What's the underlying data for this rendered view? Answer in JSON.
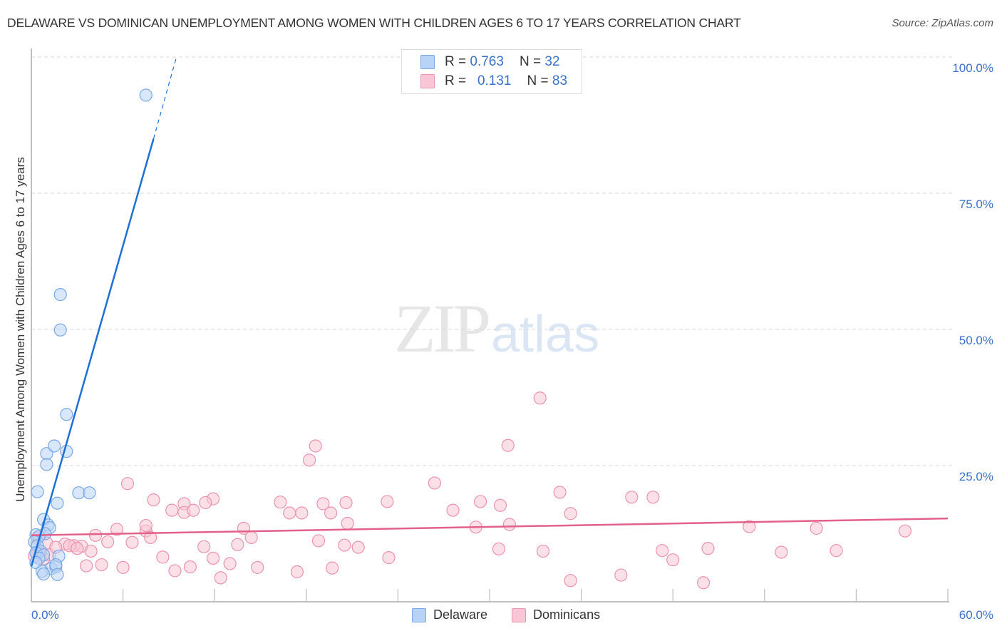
{
  "header": {
    "title": "DELAWARE VS DOMINICAN UNEMPLOYMENT AMONG WOMEN WITH CHILDREN AGES 6 TO 17 YEARS CORRELATION CHART",
    "source": "Source: ZipAtlas.com"
  },
  "watermark": {
    "zip": "ZIP",
    "atlas": "atlas"
  },
  "legend": {
    "rows": [
      {
        "r_label": "R =",
        "r_value": "0.763",
        "n_label": "N =",
        "n_value": "32",
        "color": "#a9c8f0"
      },
      {
        "r_label": "R =",
        "r_value": "0.131",
        "n_label": "N =",
        "n_value": "83",
        "color": "#f7bccf"
      }
    ]
  },
  "bottom_legend": [
    {
      "label": "Delaware",
      "color": "#b8d3f5"
    },
    {
      "label": "Dominicans",
      "color": "#f9c6d6"
    }
  ],
  "axes": {
    "y_label": "Unemployment Among Women with Children Ages 6 to 17 years",
    "y_ticks": [
      "100.0%",
      "75.0%",
      "50.0%",
      "25.0%"
    ],
    "x_min_label": "0.0%",
    "x_max_label": "60.0%"
  },
  "colors": {
    "delaware": "#1f6fd6",
    "delaware_fill": "#b8d3f5",
    "dominicans": "#e2608a",
    "dominicans_fill": "#f9c6d6",
    "tick_text": "#3a72c8"
  },
  "chart_data": {
    "type": "scatter",
    "title": "DELAWARE VS DOMINICAN UNEMPLOYMENT AMONG WOMEN WITH CHILDREN AGES 6 TO 17 YEARS CORRELATION CHART",
    "xlabel": "",
    "ylabel": "Unemployment Among Women with Children Ages 6 to 17 years",
    "xlim": [
      0,
      60
    ],
    "ylim": [
      0,
      100
    ],
    "x_ticks": [
      0,
      6,
      12,
      18,
      24,
      30,
      36,
      42,
      48,
      54,
      60
    ],
    "y_ticks": [
      25,
      50,
      75,
      100
    ],
    "grid": "horizontal dashed at y ticks",
    "legend_position": "top-center",
    "series": [
      {
        "name": "Delaware",
        "R": 0.763,
        "N": 32,
        "trendline": {
          "x": [
            0,
            8.0
          ],
          "y": [
            6.5,
            85.0
          ],
          "dashed_extension": {
            "x": [
              8.0,
              9.5
            ],
            "y": [
              85.0,
              100.0
            ]
          }
        },
        "points": [
          [
            7.5,
            93.0
          ],
          [
            1.9,
            56.4
          ],
          [
            1.9,
            49.9
          ],
          [
            2.3,
            34.4
          ],
          [
            1.0,
            27.2
          ],
          [
            2.3,
            27.6
          ],
          [
            1.5,
            28.6
          ],
          [
            1.0,
            25.2
          ],
          [
            0.4,
            20.2
          ],
          [
            3.1,
            20.0
          ],
          [
            3.8,
            20.0
          ],
          [
            1.7,
            18.1
          ],
          [
            0.8,
            15.1
          ],
          [
            1.1,
            14.1
          ],
          [
            1.2,
            13.6
          ],
          [
            0.9,
            12.5
          ],
          [
            0.3,
            12.3
          ],
          [
            0.5,
            12.0
          ],
          [
            0.2,
            11.0
          ],
          [
            0.4,
            10.3
          ],
          [
            0.6,
            9.3
          ],
          [
            0.3,
            9.0
          ],
          [
            0.8,
            8.6
          ],
          [
            0.5,
            8.0
          ],
          [
            1.8,
            8.4
          ],
          [
            0.3,
            7.2
          ],
          [
            1.3,
            6.1
          ],
          [
            1.6,
            6.4
          ],
          [
            1.6,
            6.8
          ],
          [
            0.7,
            5.6
          ],
          [
            0.8,
            5.1
          ],
          [
            1.7,
            5.0
          ]
        ]
      },
      {
        "name": "Dominicans",
        "R": 0.131,
        "N": 83,
        "trendline": {
          "x": [
            0,
            60
          ],
          "y": [
            12.2,
            15.3
          ]
        },
        "points": [
          [
            33.3,
            37.4
          ],
          [
            18.6,
            28.6
          ],
          [
            31.2,
            28.7
          ],
          [
            18.2,
            26.0
          ],
          [
            6.3,
            21.7
          ],
          [
            26.4,
            21.8
          ],
          [
            8.0,
            18.7
          ],
          [
            11.9,
            18.9
          ],
          [
            10.0,
            18.0
          ],
          [
            11.4,
            18.2
          ],
          [
            23.3,
            18.4
          ],
          [
            16.3,
            18.3
          ],
          [
            20.6,
            18.2
          ],
          [
            29.4,
            18.4
          ],
          [
            39.3,
            19.2
          ],
          [
            40.7,
            19.2
          ],
          [
            34.6,
            20.1
          ],
          [
            9.2,
            16.8
          ],
          [
            10.0,
            16.4
          ],
          [
            10.6,
            16.8
          ],
          [
            16.9,
            16.3
          ],
          [
            17.7,
            16.3
          ],
          [
            19.1,
            18.0
          ],
          [
            19.6,
            16.3
          ],
          [
            27.6,
            16.8
          ],
          [
            30.7,
            17.7
          ],
          [
            35.3,
            16.2
          ],
          [
            7.5,
            13.0
          ],
          [
            7.5,
            14.0
          ],
          [
            5.6,
            13.3
          ],
          [
            4.2,
            12.2
          ],
          [
            13.9,
            13.5
          ],
          [
            29.1,
            13.7
          ],
          [
            31.3,
            14.2
          ],
          [
            47.0,
            13.8
          ],
          [
            51.4,
            13.5
          ],
          [
            57.2,
            13.0
          ],
          [
            20.7,
            14.4
          ],
          [
            1.0,
            10.8
          ],
          [
            2.2,
            10.6
          ],
          [
            2.8,
            10.3
          ],
          [
            3.3,
            10.2
          ],
          [
            2.5,
            10.3
          ],
          [
            3.9,
            9.3
          ],
          [
            5.0,
            11.0
          ],
          [
            6.6,
            10.9
          ],
          [
            7.8,
            11.8
          ],
          [
            11.3,
            10.1
          ],
          [
            13.5,
            10.5
          ],
          [
            14.4,
            11.8
          ],
          [
            18.8,
            11.2
          ],
          [
            20.5,
            10.4
          ],
          [
            21.4,
            10.0
          ],
          [
            30.6,
            9.7
          ],
          [
            33.5,
            9.3
          ],
          [
            41.3,
            9.4
          ],
          [
            44.3,
            9.8
          ],
          [
            49.1,
            9.1
          ],
          [
            52.7,
            9.4
          ],
          [
            0.5,
            9.0
          ],
          [
            1.2,
            8.6
          ],
          [
            8.6,
            8.2
          ],
          [
            11.9,
            8.0
          ],
          [
            13.0,
            7.0
          ],
          [
            23.4,
            8.1
          ],
          [
            42.0,
            7.7
          ],
          [
            3.6,
            6.6
          ],
          [
            4.6,
            6.8
          ],
          [
            6.0,
            6.3
          ],
          [
            9.4,
            5.7
          ],
          [
            10.4,
            6.4
          ],
          [
            14.8,
            6.3
          ],
          [
            17.4,
            5.5
          ],
          [
            19.7,
            6.2
          ],
          [
            12.4,
            4.4
          ],
          [
            35.3,
            3.9
          ],
          [
            38.6,
            4.9
          ],
          [
            44.0,
            3.5
          ],
          [
            0.8,
            7.9
          ],
          [
            1.6,
            10.0
          ],
          [
            3.0,
            9.8
          ],
          [
            0.4,
            11.7
          ],
          [
            0.2,
            8.4
          ]
        ]
      }
    ]
  }
}
